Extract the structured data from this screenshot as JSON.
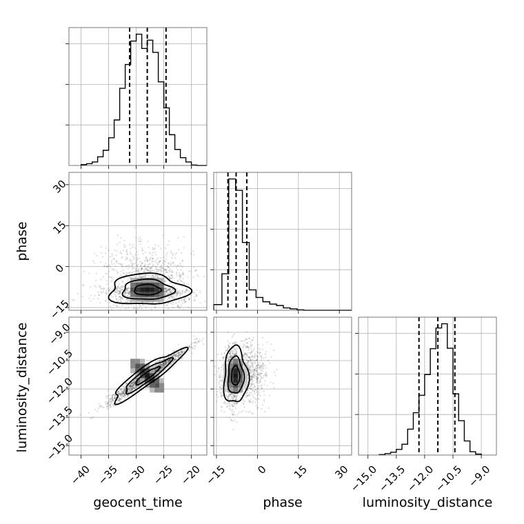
{
  "chart_data": {
    "type": "corner",
    "parameters": [
      "geocent_time",
      "phase",
      "luminosity_distance"
    ],
    "axis_labels": {
      "x": [
        "geocent_time",
        "phase",
        "luminosity_distance"
      ],
      "y": [
        "phase",
        "luminosity_distance"
      ]
    },
    "ranges": {
      "geocent_time": [
        -42.2,
        -17.2
      ],
      "phase": [
        -16.0,
        34.5
      ],
      "luminosity_distance": [
        -15.5,
        -8.2
      ]
    },
    "ticks": {
      "geocent_time": [
        -40,
        -35,
        -30,
        -25,
        -20
      ],
      "phase": [
        -15,
        0,
        15,
        30
      ],
      "luminosity_distance": [
        -15.0,
        -13.5,
        -12.0,
        -10.5,
        -9.0
      ]
    },
    "tick_labels": {
      "geocent_time": [
        "−40",
        "−35",
        "−30",
        "−25",
        "−20"
      ],
      "phase": [
        "−15",
        "0",
        "15",
        "30"
      ],
      "luminosity_distance": [
        "−15.0",
        "−13.5",
        "−12.0",
        "−10.5",
        "−9.0"
      ]
    },
    "quantiles": {
      "geocent_time": [
        -31.2,
        -28.0,
        -24.6
      ],
      "phase": [
        -10.8,
        -7.8,
        -3.9
      ],
      "luminosity_distance": [
        -12.3,
        -11.3,
        -10.4
      ]
    },
    "histograms": [
      {
        "parameter": "geocent_time",
        "bin_edges": [
          -40.0,
          -39.0,
          -38.0,
          -37.0,
          -36.0,
          -35.0,
          -34.0,
          -33.0,
          -32.0,
          -31.0,
          -30.0,
          -29.0,
          -28.0,
          -27.0,
          -26.0,
          -25.0,
          -24.0,
          -23.0,
          -22.0,
          -21.0,
          -20.0,
          -19.0,
          -17.2
        ],
        "counts": [
          2,
          4,
          8,
          20,
          35,
          64,
          105,
          178,
          233,
          287,
          303,
          270,
          289,
          261,
          193,
          133,
          71,
          37,
          18,
          8,
          1,
          0
        ]
      },
      {
        "parameter": "phase",
        "bin_edges": [
          -16.0,
          -13.0,
          -10.5,
          -8.0,
          -5.5,
          -3.0,
          -0.5,
          2.0,
          4.5,
          7.0,
          9.5,
          12.0,
          14.5,
          17.0,
          34.5
        ],
        "counts": [
          12,
          77,
          277,
          253,
          143,
          43,
          27,
          18,
          13,
          10,
          5,
          3,
          1,
          0
        ]
      },
      {
        "parameter": "luminosity_distance",
        "bin_edges": [
          -14.4,
          -14.1,
          -13.8,
          -13.5,
          -13.2,
          -12.9,
          -12.6,
          -12.3,
          -12.0,
          -11.7,
          -11.4,
          -11.1,
          -10.8,
          -10.5,
          -10.2,
          -9.9,
          -9.6,
          -9.3,
          -9.0
        ],
        "counts": [
          1,
          3,
          6,
          12,
          23,
          55,
          90,
          127,
          171,
          226,
          270,
          279,
          227,
          130,
          73,
          30,
          7,
          2
        ]
      }
    ],
    "joint_panels": [
      {
        "x": "geocent_time",
        "y": "phase",
        "mode": [
          -28.0,
          -8.5
        ],
        "sigma": [
          4.0,
          3.2
        ],
        "correlation": -0.1
      },
      {
        "x": "geocent_time",
        "y": "luminosity_distance",
        "mode": [
          -28.0,
          -11.3
        ],
        "sigma": [
          3.6,
          0.75
        ],
        "correlation": 0.97
      },
      {
        "x": "phase",
        "y": "luminosity_distance",
        "mode": [
          -8.0,
          -11.3
        ],
        "sigma": [
          2.5,
          0.85
        ],
        "correlation": 0.1
      }
    ],
    "grid": true
  }
}
